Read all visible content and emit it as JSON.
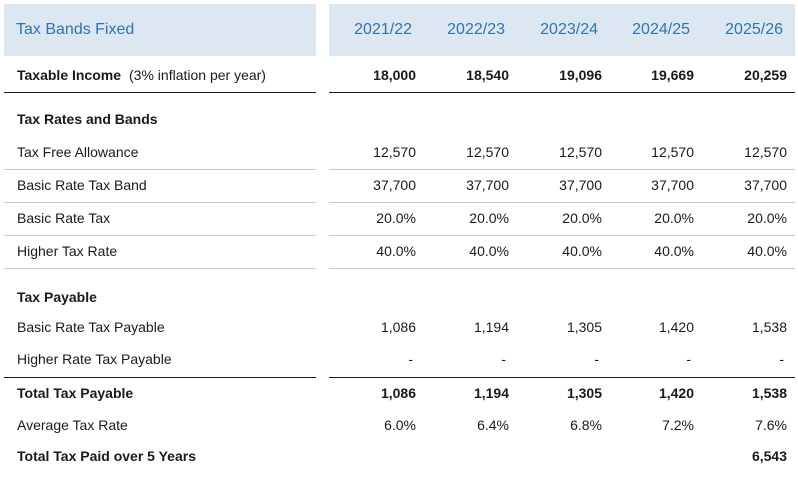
{
  "header": {
    "title": "Tax Bands Fixed",
    "years": [
      "2021/22",
      "2022/23",
      "2023/24",
      "2024/25",
      "2025/26"
    ]
  },
  "taxable_income": {
    "label": "Taxable Income",
    "note": "(3% inflation per year)",
    "values": [
      "18,000",
      "18,540",
      "19,096",
      "19,669",
      "20,259"
    ]
  },
  "rates_section": {
    "title": "Tax Rates and Bands",
    "rows": [
      {
        "label": "Tax Free Allowance",
        "values": [
          "12,570",
          "12,570",
          "12,570",
          "12,570",
          "12,570"
        ]
      },
      {
        "label": "Basic Rate Tax Band",
        "values": [
          "37,700",
          "37,700",
          "37,700",
          "37,700",
          "37,700"
        ]
      },
      {
        "label": "Basic Rate Tax",
        "values": [
          "20.0%",
          "20.0%",
          "20.0%",
          "20.0%",
          "20.0%"
        ]
      },
      {
        "label": "Higher Tax Rate",
        "values": [
          "40.0%",
          "40.0%",
          "40.0%",
          "40.0%",
          "40.0%"
        ]
      }
    ]
  },
  "payable_section": {
    "title": "Tax Payable",
    "rows": [
      {
        "label": "Basic Rate Tax Payable",
        "values": [
          "1,086",
          "1,194",
          "1,305",
          "1,420",
          "1,538"
        ]
      },
      {
        "label": "Higher Rate Tax Payable",
        "values": [
          "-",
          "-",
          "-",
          "-",
          "-"
        ]
      }
    ]
  },
  "total_tax": {
    "label": "Total Tax Payable",
    "values": [
      "1,086",
      "1,194",
      "1,305",
      "1,420",
      "1,538"
    ]
  },
  "average_rate": {
    "label": "Average Tax Rate",
    "values": [
      "6.0%",
      "6.4%",
      "6.8%",
      "7.2%",
      "7.6%"
    ]
  },
  "total_paid": {
    "label": "Total Tax Paid over 5 Years",
    "value": "6,543"
  }
}
